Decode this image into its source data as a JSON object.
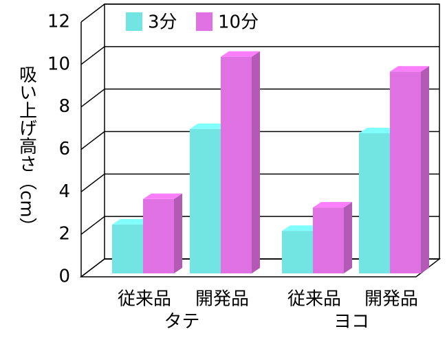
{
  "chart_data": {
    "type": "bar3d",
    "y_label": "吸い上げ高さ（cm）",
    "categories": [
      "従来品",
      "開発品",
      "従来品",
      "開発品"
    ],
    "groups": [
      "タテ",
      "ヨコ"
    ],
    "series": [
      {
        "name": "3分",
        "color": "#72e4e2",
        "values": [
          2.3,
          6.8,
          2.0,
          6.6
        ]
      },
      {
        "name": "10分",
        "color": "#e071e2",
        "values": [
          3.5,
          10.2,
          3.1,
          9.5
        ]
      }
    ],
    "ylim": [
      0,
      12
    ],
    "yticks": [
      0,
      2,
      4,
      6,
      8,
      10,
      12
    ],
    "grid": true
  }
}
